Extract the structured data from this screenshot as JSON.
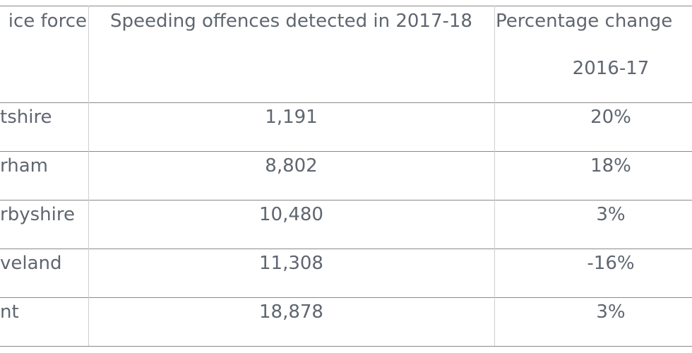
{
  "table": {
    "header": [
      "ice force",
      "Speeding offences detected in 2017-18",
      "Percentage change",
      "2016-17"
    ],
    "rows": [
      [
        "tshire",
        "1,191",
        "20%"
      ],
      [
        "rham",
        "8,802",
        "18%"
      ],
      [
        "rbyshire",
        "10,480",
        "3%"
      ],
      [
        "veland",
        "11,308",
        "-16%"
      ],
      [
        "nt",
        "18,878",
        "3%"
      ]
    ]
  }
}
